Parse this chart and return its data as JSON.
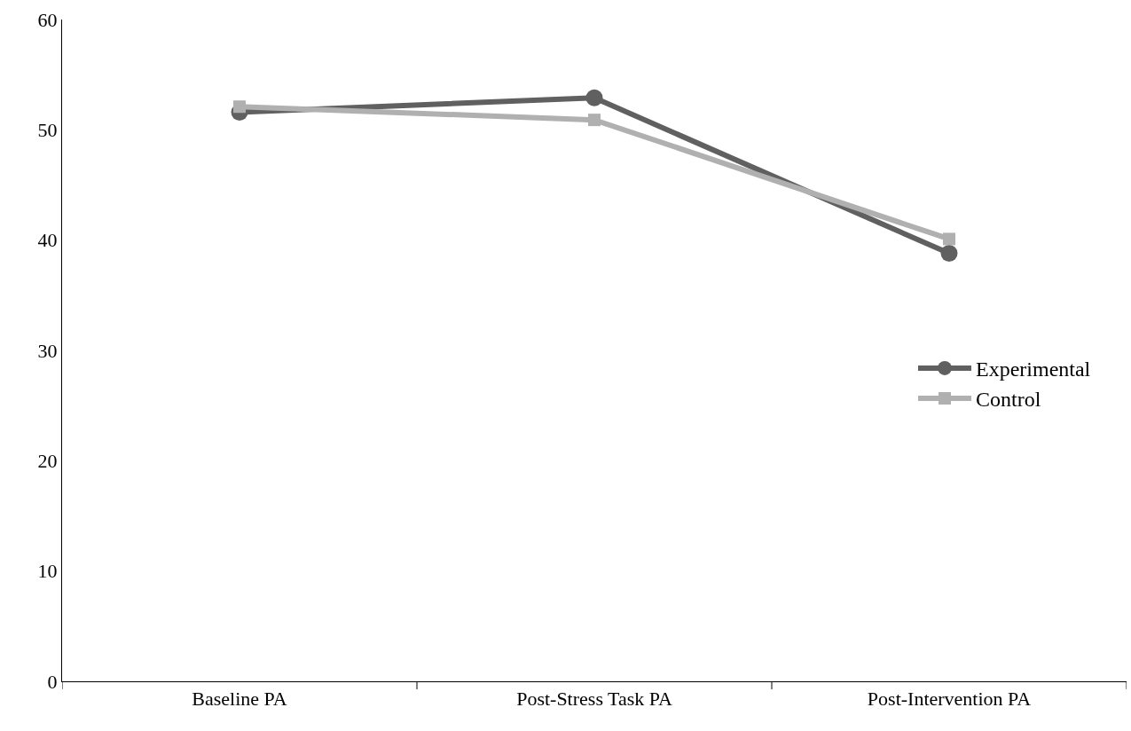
{
  "chart_data": {
    "type": "line",
    "categories": [
      "Baseline PA",
      "Post-Stress Task PA",
      "Post-Intervention PA"
    ],
    "series": [
      {
        "name": "Experimental",
        "color": "#606060",
        "marker": "circle",
        "values": [
          51.6,
          52.9,
          38.8
        ]
      },
      {
        "name": "Control",
        "color": "#b0b0b0",
        "marker": "square",
        "values": [
          52.1,
          50.9,
          40.1
        ]
      }
    ],
    "ylim": [
      0,
      60
    ],
    "yticks": [
      0,
      10,
      20,
      30,
      40,
      50,
      60
    ],
    "grid": false,
    "legend": "right",
    "line_style": "solid"
  }
}
